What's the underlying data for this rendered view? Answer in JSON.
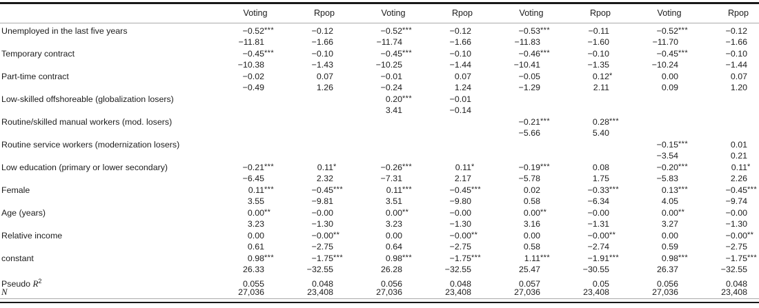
{
  "table": {
    "column_headers": [
      "Voting",
      "Rpop",
      "Voting",
      "Rpop",
      "Voting",
      "Rpop",
      "Voting",
      "Rpop"
    ],
    "rows": [
      {
        "label": "Unemployed in the last five years",
        "coefs": [
          "−0.52***",
          "−0.12",
          "−0.52***",
          "−0.12",
          "−0.53***",
          "−0.11",
          "−0.52***",
          "−0.12"
        ],
        "tstats": [
          "−11.81",
          "−1.66",
          "−11.74",
          "−1.66",
          "−11.83",
          "−1.60",
          "−11.70",
          "−1.66"
        ]
      },
      {
        "label": "Temporary contract",
        "coefs": [
          "−0.45***",
          "−0.10",
          "−0.45***",
          "−0.10",
          "−0.46***",
          "−0.10",
          "−0.45***",
          "−0.10"
        ],
        "tstats": [
          "−10.38",
          "−1.43",
          "−10.25",
          "−1.44",
          "−10.41",
          "−1.35",
          "−10.24",
          "−1.44"
        ]
      },
      {
        "label": "Part-time contract",
        "coefs": [
          "−0.02",
          "0.07",
          "−0.01",
          "0.07",
          "−0.05",
          "0.12*",
          "0.00",
          "0.07"
        ],
        "tstats": [
          "−0.49",
          "1.26",
          "−0.24",
          "1.24",
          "−1.29",
          "2.11",
          "0.09",
          "1.20"
        ]
      },
      {
        "label": "Low-skilled offshoreable (globalization losers)",
        "coefs": [
          "",
          "",
          "0.20***",
          "−0.01",
          "",
          "",
          "",
          ""
        ],
        "tstats": [
          "",
          "",
          "3.41",
          "−0.14",
          "",
          "",
          "",
          ""
        ]
      },
      {
        "label": "Routine/skilled manual workers (mod. losers)",
        "coefs": [
          "",
          "",
          "",
          "",
          "−0.21***",
          "0.28***",
          "",
          ""
        ],
        "tstats": [
          "",
          "",
          "",
          "",
          "−5.66",
          "5.40",
          "",
          ""
        ]
      },
      {
        "label": "Routine service workers (modernization losers)",
        "coefs": [
          "",
          "",
          "",
          "",
          "",
          "",
          "−0.15***",
          "0.01"
        ],
        "tstats": [
          "",
          "",
          "",
          "",
          "",
          "",
          "−3.54",
          "0.21"
        ]
      },
      {
        "label": "Low education (primary or lower secondary)",
        "coefs": [
          "−0.21***",
          "0.11*",
          "−0.26***",
          "0.11*",
          "−0.19***",
          "0.08",
          "−0.20***",
          "0.11*"
        ],
        "tstats": [
          "−6.45",
          "2.32",
          "−7.31",
          "2.17",
          "−5.78",
          "1.75",
          "−5.83",
          "2.26"
        ]
      },
      {
        "label": "Female",
        "coefs": [
          "0.11***",
          "−0.45***",
          "0.11***",
          "−0.45***",
          "0.02",
          "−0.33***",
          "0.13***",
          "−0.45***"
        ],
        "tstats": [
          "3.55",
          "−9.81",
          "3.51",
          "−9.80",
          "0.58",
          "−6.34",
          "4.05",
          "−9.74"
        ]
      },
      {
        "label": "Age (years)",
        "coefs": [
          "0.00**",
          "−0.00",
          "0.00**",
          "−0.00",
          "0.00**",
          "−0.00",
          "0.00**",
          "−0.00"
        ],
        "tstats": [
          "3.23",
          "−1.30",
          "3.23",
          "−1.30",
          "3.16",
          "−1.31",
          "3.27",
          "−1.30"
        ]
      },
      {
        "label": "Relative income",
        "coefs": [
          "0.00",
          "−0.00**",
          "0.00",
          "−0.00**",
          "0.00",
          "−0.00**",
          "0.00",
          "−0.00**"
        ],
        "tstats": [
          "0.61",
          "−2.75",
          "0.64",
          "−2.75",
          "0.58",
          "−2.74",
          "0.59",
          "−2.75"
        ]
      },
      {
        "label": "constant",
        "coefs": [
          "0.98***",
          "−1.75***",
          "0.98***",
          "−1.75***",
          "1.11***",
          "−1.91***",
          "0.98***",
          "−1.75***"
        ],
        "tstats": [
          "26.33",
          "−32.55",
          "26.28",
          "−32.55",
          "25.47",
          "−30.55",
          "26.37",
          "−32.55"
        ]
      },
      {
        "label": "Pseudo ",
        "label_italic": "R",
        "label_sup": "2",
        "values": [
          "0.055",
          "0.048",
          "0.056",
          "0.048",
          "0.057",
          "0.05",
          "0.056",
          "0.048"
        ]
      },
      {
        "label": "",
        "label_italic": "N",
        "values": [
          "27,036",
          "23,408",
          "27,036",
          "23,408",
          "27,036",
          "23,408",
          "27,036",
          "23,408"
        ]
      }
    ]
  }
}
